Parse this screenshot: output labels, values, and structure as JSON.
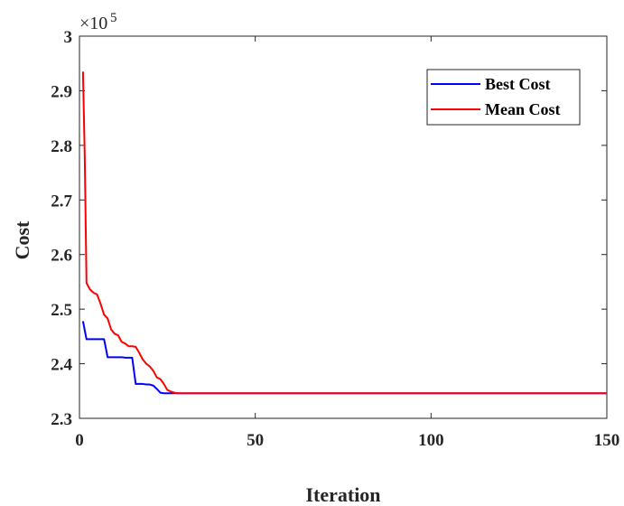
{
  "chart_data": {
    "type": "line",
    "title": "",
    "xlabel": "Iteration",
    "ylabel": "Cost",
    "y_exponent_label": "×10",
    "y_exponent_power": "5",
    "xlim": [
      0,
      150
    ],
    "ylim": [
      2.3,
      3.0
    ],
    "x_ticks": [
      "0",
      "50",
      "100",
      "150"
    ],
    "y_ticks": [
      "2.3",
      "2.4",
      "2.5",
      "2.6",
      "2.7",
      "2.8",
      "2.9",
      "3"
    ],
    "grid": false,
    "legend_position": "top-right",
    "series": [
      {
        "name": "Best Cost",
        "color": "#0000ff",
        "points": [
          [
            1,
            2.478
          ],
          [
            2,
            2.445
          ],
          [
            3,
            2.445
          ],
          [
            7,
            2.445
          ],
          [
            8,
            2.412
          ],
          [
            12,
            2.412
          ],
          [
            13,
            2.411
          ],
          [
            15,
            2.411
          ],
          [
            16,
            2.363
          ],
          [
            18,
            2.363
          ],
          [
            19,
            2.362
          ],
          [
            20,
            2.362
          ],
          [
            21,
            2.36
          ],
          [
            22,
            2.354
          ],
          [
            23,
            2.347
          ],
          [
            24,
            2.346
          ],
          [
            25,
            2.346
          ],
          [
            150,
            2.346
          ]
        ]
      },
      {
        "name": "Mean Cost",
        "color": "#ff0000",
        "points": [
          [
            1,
            2.935
          ],
          [
            1.5,
            2.78
          ],
          [
            2,
            2.548
          ],
          [
            3,
            2.536
          ],
          [
            4,
            2.53
          ],
          [
            5,
            2.527
          ],
          [
            6,
            2.51
          ],
          [
            7,
            2.49
          ],
          [
            8,
            2.483
          ],
          [
            9,
            2.463
          ],
          [
            10,
            2.455
          ],
          [
            11,
            2.452
          ],
          [
            12,
            2.44
          ],
          [
            13,
            2.437
          ],
          [
            14,
            2.432
          ],
          [
            15,
            2.432
          ],
          [
            16,
            2.431
          ],
          [
            17,
            2.42
          ],
          [
            18,
            2.408
          ],
          [
            19,
            2.4
          ],
          [
            20,
            2.395
          ],
          [
            21,
            2.387
          ],
          [
            22,
            2.375
          ],
          [
            23,
            2.372
          ],
          [
            24,
            2.363
          ],
          [
            25,
            2.352
          ],
          [
            26,
            2.349
          ],
          [
            27,
            2.347
          ],
          [
            28,
            2.346
          ],
          [
            150,
            2.346
          ]
        ]
      }
    ]
  }
}
